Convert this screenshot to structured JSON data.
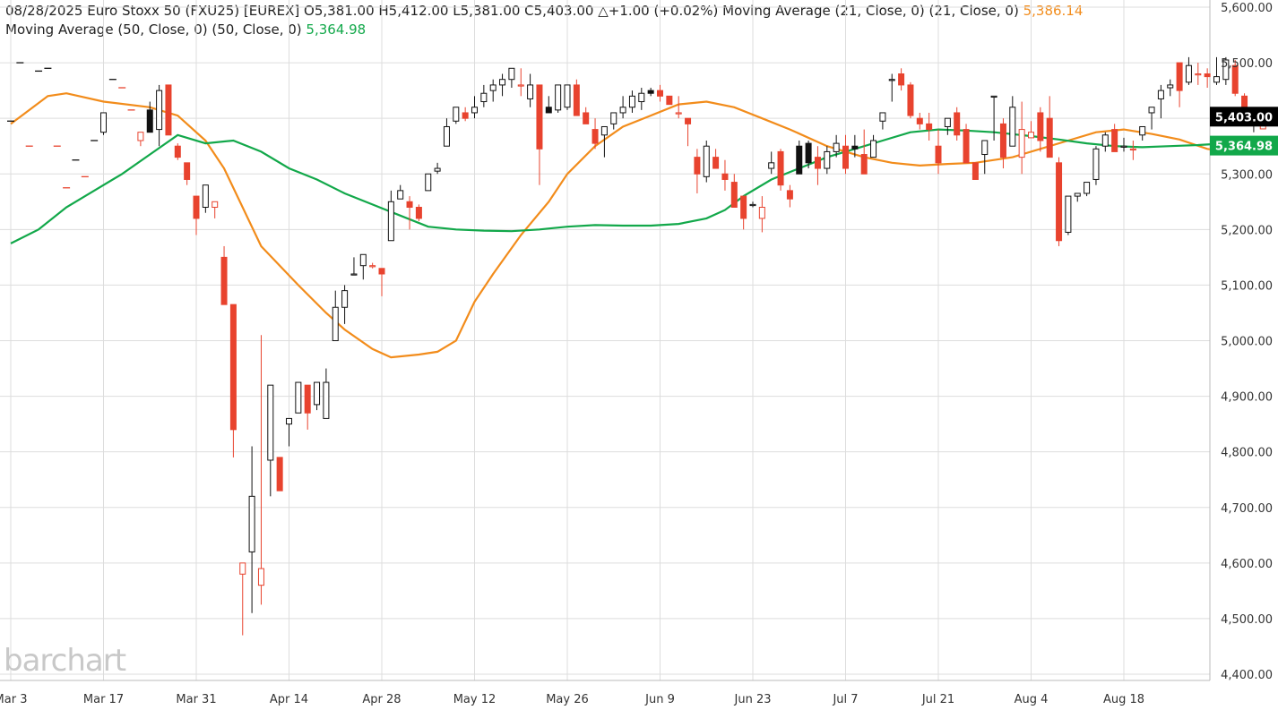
{
  "header": {
    "line1": "08/28/2025 Euro Stoxx 50 (FXU25) [EUREX] O5,381.00 H5,412.00 L5,381.00 C5,403.00 △+1.00 (+0.02%) Moving Average (21, Close, 0)  (21, Close, 0)",
    "ma21_value": "5,386.14",
    "line2": "Moving Average (50, Close, 0)  (50, Close, 0)",
    "ma50_value": "5,364.98"
  },
  "logo": "barchart",
  "colors": {
    "up": "#111111",
    "down": "#e8432e",
    "ma21": "#f28c1b",
    "ma50": "#12a84a",
    "grid": "#dddddd"
  },
  "chart_data": {
    "type": "candlestick",
    "y_axis": {
      "min": 4400,
      "max": 5600,
      "ticks": [
        "5,600.00",
        "5,500.00",
        "5,400.00",
        "5,300.00",
        "5,200.00",
        "5,100.00",
        "5,000.00",
        "4,900.00",
        "4,800.00",
        "4,700.00",
        "4,600.00",
        "4,500.00",
        "4,400.00"
      ],
      "position": "right"
    },
    "x_axis": {
      "ticks": [
        "Mar 3",
        "Mar 17",
        "Mar 31",
        "Apr 14",
        "Apr 28",
        "May 12",
        "May 26",
        "Jun 9",
        "Jun 23",
        "Jul 7",
        "Jul 21",
        "Aug 4",
        "Aug 18"
      ],
      "start_date": "Mar 3",
      "bars_per_tick": 10
    },
    "last_price": {
      "value": "5,403.00"
    },
    "ma50_label": {
      "value": "5,364.98"
    },
    "candles": [
      [
        5390,
        5395,
        5390,
        5395,
        "dash"
      ],
      [
        5500,
        5500,
        5500,
        5500,
        "dash"
      ],
      [
        5350,
        5350,
        5350,
        5350,
        "dash"
      ],
      [
        5485,
        5485,
        5485,
        5485,
        "dash"
      ],
      [
        5490,
        5490,
        5490,
        5490,
        "dash"
      ],
      [
        5350,
        5350,
        5350,
        5350,
        "dash"
      ],
      [
        5275,
        5275,
        5275,
        5275,
        "dash"
      ],
      [
        5325,
        5325,
        5325,
        5325,
        "dash"
      ],
      [
        5295,
        5295,
        5295,
        5295,
        "dash"
      ],
      [
        5360,
        5360,
        5360,
        5360,
        "dash"
      ],
      [
        5375,
        5410,
        5370,
        5410
      ],
      [
        5470,
        5470,
        5470,
        5470,
        "dash"
      ],
      [
        5455,
        5455,
        5455,
        5455,
        "dash"
      ],
      [
        5415,
        5415,
        5415,
        5415,
        "dash"
      ],
      [
        5360,
        5375,
        5350,
        5375
      ],
      [
        5415,
        5430,
        5375,
        5375
      ],
      [
        5380,
        5460,
        5350,
        5450
      ],
      [
        5460,
        5460,
        5370,
        5370
      ],
      [
        5350,
        5355,
        5325,
        5330
      ],
      [
        5320,
        5320,
        5280,
        5290
      ],
      [
        5260,
        5260,
        5190,
        5220
      ],
      [
        5240,
        5280,
        5230,
        5280
      ],
      [
        5240,
        5250,
        5220,
        5250
      ],
      [
        5150,
        5170,
        5065,
        5065
      ],
      [
        5065,
        5065,
        4790,
        4840
      ],
      [
        4580,
        4590,
        4470,
        4600
      ],
      [
        4620,
        4810,
        4510,
        4720
      ],
      [
        4560,
        5010,
        4525,
        4590
      ],
      [
        4785,
        4920,
        4720,
        4920
      ],
      [
        4790,
        4790,
        4730,
        4730
      ],
      [
        4850,
        4860,
        4810,
        4860
      ],
      [
        4870,
        4925,
        4870,
        4925
      ],
      [
        4920,
        4920,
        4840,
        4870
      ],
      [
        4885,
        4925,
        4875,
        4925
      ],
      [
        4860,
        4950,
        4860,
        4925
      ],
      [
        5000,
        5090,
        5000,
        5060
      ],
      [
        5060,
        5100,
        5030,
        5090
      ],
      [
        5120,
        5150,
        5120,
        5120
      ],
      [
        5135,
        5155,
        5110,
        5155
      ],
      [
        5135,
        5140,
        5130,
        5135
      ],
      [
        5130,
        5130,
        5080,
        5120
      ],
      [
        5180,
        5270,
        5180,
        5250
      ],
      [
        5255,
        5280,
        5255,
        5270
      ],
      [
        5250,
        5260,
        5200,
        5240
      ],
      [
        5240,
        5245,
        5215,
        5220
      ],
      [
        5270,
        5300,
        5270,
        5300
      ],
      [
        5305,
        5320,
        5300,
        5310
      ],
      [
        5350,
        5400,
        5350,
        5385
      ],
      [
        5395,
        5420,
        5390,
        5420
      ],
      [
        5410,
        5420,
        5395,
        5400
      ],
      [
        5410,
        5440,
        5400,
        5420
      ],
      [
        5430,
        5460,
        5420,
        5445
      ],
      [
        5450,
        5470,
        5430,
        5460
      ],
      [
        5460,
        5480,
        5440,
        5470
      ],
      [
        5470,
        5490,
        5455,
        5490
      ],
      [
        5460,
        5490,
        5440,
        5460
      ],
      [
        5435,
        5480,
        5420,
        5460
      ],
      [
        5460,
        5460,
        5280,
        5345
      ],
      [
        5420,
        5440,
        5410,
        5410
      ],
      [
        5415,
        5460,
        5410,
        5460
      ],
      [
        5420,
        5460,
        5415,
        5460
      ],
      [
        5460,
        5470,
        5405,
        5405
      ],
      [
        5410,
        5420,
        5390,
        5390
      ],
      [
        5380,
        5400,
        5345,
        5355
      ],
      [
        5370,
        5385,
        5330,
        5385
      ],
      [
        5390,
        5410,
        5380,
        5410
      ],
      [
        5410,
        5440,
        5400,
        5420
      ],
      [
        5420,
        5450,
        5410,
        5440
      ],
      [
        5430,
        5455,
        5415,
        5445
      ],
      [
        5450,
        5455,
        5440,
        5445
      ],
      [
        5450,
        5460,
        5430,
        5440
      ],
      [
        5440,
        5440,
        5425,
        5425
      ],
      [
        5410,
        5440,
        5400,
        5410
      ],
      [
        5400,
        5400,
        5350,
        5390
      ],
      [
        5330,
        5345,
        5265,
        5300
      ],
      [
        5295,
        5360,
        5285,
        5350
      ],
      [
        5330,
        5345,
        5310,
        5310
      ],
      [
        5300,
        5325,
        5270,
        5290
      ],
      [
        5285,
        5300,
        5250,
        5240
      ],
      [
        5260,
        5260,
        5200,
        5220
      ],
      [
        5245,
        5250,
        5240,
        5245
      ],
      [
        5220,
        5260,
        5195,
        5240
      ],
      [
        5310,
        5340,
        5300,
        5320
      ],
      [
        5340,
        5345,
        5270,
        5280
      ],
      [
        5270,
        5280,
        5240,
        5255
      ],
      [
        5350,
        5360,
        5300,
        5300
      ],
      [
        5355,
        5360,
        5310,
        5320
      ],
      [
        5330,
        5350,
        5280,
        5310
      ],
      [
        5310,
        5350,
        5300,
        5340
      ],
      [
        5340,
        5370,
        5330,
        5355
      ],
      [
        5350,
        5370,
        5300,
        5310
      ],
      [
        5350,
        5370,
        5330,
        5345
      ],
      [
        5335,
        5380,
        5300,
        5300
      ],
      [
        5330,
        5370,
        5330,
        5360
      ],
      [
        5395,
        5410,
        5380,
        5410
      ],
      [
        5470,
        5480,
        5430,
        5470
      ],
      [
        5480,
        5490,
        5450,
        5460
      ],
      [
        5460,
        5465,
        5400,
        5405
      ],
      [
        5400,
        5410,
        5380,
        5390
      ],
      [
        5390,
        5410,
        5360,
        5380
      ],
      [
        5350,
        5380,
        5300,
        5320
      ],
      [
        5385,
        5400,
        5370,
        5400
      ],
      [
        5410,
        5420,
        5360,
        5370
      ],
      [
        5380,
        5390,
        5320,
        5320
      ],
      [
        5320,
        5320,
        5290,
        5290
      ],
      [
        5335,
        5360,
        5300,
        5360
      ],
      [
        5440,
        5440,
        5360,
        5440
      ],
      [
        5390,
        5400,
        5310,
        5330
      ],
      [
        5350,
        5440,
        5350,
        5420
      ],
      [
        5330,
        5430,
        5300,
        5380
      ],
      [
        5365,
        5395,
        5365,
        5375
      ],
      [
        5410,
        5420,
        5340,
        5360
      ],
      [
        5400,
        5440,
        5330,
        5330
      ],
      [
        5320,
        5330,
        5170,
        5180
      ],
      [
        5195,
        5260,
        5190,
        5260
      ],
      [
        5260,
        5265,
        5250,
        5265
      ],
      [
        5265,
        5285,
        5260,
        5285
      ],
      [
        5290,
        5350,
        5280,
        5345
      ],
      [
        5350,
        5375,
        5340,
        5370
      ],
      [
        5380,
        5390,
        5340,
        5340
      ],
      [
        5350,
        5365,
        5340,
        5350
      ],
      [
        5345,
        5360,
        5325,
        5345
      ],
      [
        5370,
        5385,
        5360,
        5385
      ],
      [
        5410,
        5420,
        5380,
        5420
      ],
      [
        5435,
        5460,
        5400,
        5450
      ],
      [
        5455,
        5470,
        5440,
        5460
      ],
      [
        5500,
        5500,
        5420,
        5450
      ],
      [
        5465,
        5510,
        5460,
        5495
      ],
      [
        5480,
        5500,
        5460,
        5480
      ],
      [
        5480,
        5490,
        5455,
        5475
      ],
      [
        5465,
        5510,
        5460,
        5475
      ],
      [
        5470,
        5510,
        5460,
        5505
      ],
      [
        5495,
        5505,
        5440,
        5445
      ],
      [
        5440,
        5445,
        5390,
        5395
      ],
      [
        5395,
        5410,
        5375,
        5410
      ],
      [
        5381,
        5412,
        5381,
        5403
      ]
    ],
    "ma21": [
      [
        0,
        5390
      ],
      [
        4,
        5440
      ],
      [
        6,
        5445
      ],
      [
        10,
        5430
      ],
      [
        15,
        5420
      ],
      [
        18,
        5405
      ],
      [
        21,
        5360
      ],
      [
        23,
        5310
      ],
      [
        27,
        5170
      ],
      [
        31,
        5100
      ],
      [
        34,
        5050
      ],
      [
        36,
        5020
      ],
      [
        39,
        4985
      ],
      [
        41,
        4970
      ],
      [
        44,
        4975
      ],
      [
        46,
        4980
      ],
      [
        48,
        5000
      ],
      [
        50,
        5070
      ],
      [
        52,
        5120
      ],
      [
        55,
        5190
      ],
      [
        58,
        5250
      ],
      [
        60,
        5300
      ],
      [
        63,
        5350
      ],
      [
        66,
        5385
      ],
      [
        69,
        5405
      ],
      [
        72,
        5425
      ],
      [
        75,
        5430
      ],
      [
        78,
        5420
      ],
      [
        81,
        5400
      ],
      [
        84,
        5380
      ],
      [
        88,
        5350
      ],
      [
        92,
        5330
      ],
      [
        95,
        5320
      ],
      [
        98,
        5315
      ],
      [
        101,
        5318
      ],
      [
        104,
        5320
      ],
      [
        108,
        5330
      ],
      [
        111,
        5345
      ],
      [
        114,
        5360
      ],
      [
        117,
        5375
      ],
      [
        120,
        5380
      ],
      [
        123,
        5372
      ],
      [
        126,
        5362
      ],
      [
        129,
        5345
      ],
      [
        132,
        5338
      ],
      [
        135,
        5350
      ],
      [
        138,
        5362
      ],
      [
        141,
        5380
      ],
      [
        144,
        5385
      ],
      [
        146,
        5386
      ]
    ],
    "ma50": [
      [
        0,
        5175
      ],
      [
        3,
        5200
      ],
      [
        6,
        5240
      ],
      [
        9,
        5270
      ],
      [
        12,
        5300
      ],
      [
        15,
        5335
      ],
      [
        18,
        5370
      ],
      [
        21,
        5355
      ],
      [
        24,
        5360
      ],
      [
        27,
        5340
      ],
      [
        30,
        5310
      ],
      [
        33,
        5290
      ],
      [
        36,
        5265
      ],
      [
        39,
        5245
      ],
      [
        42,
        5225
      ],
      [
        45,
        5205
      ],
      [
        48,
        5200
      ],
      [
        51,
        5198
      ],
      [
        54,
        5197
      ],
      [
        57,
        5200
      ],
      [
        60,
        5205
      ],
      [
        63,
        5208
      ],
      [
        66,
        5207
      ],
      [
        69,
        5207
      ],
      [
        72,
        5210
      ],
      [
        75,
        5220
      ],
      [
        77,
        5235
      ],
      [
        79,
        5260
      ],
      [
        82,
        5290
      ],
      [
        85,
        5310
      ],
      [
        88,
        5330
      ],
      [
        91,
        5345
      ],
      [
        94,
        5360
      ],
      [
        97,
        5375
      ],
      [
        100,
        5380
      ],
      [
        103,
        5378
      ],
      [
        106,
        5375
      ],
      [
        110,
        5368
      ],
      [
        113,
        5362
      ],
      [
        116,
        5355
      ],
      [
        119,
        5350
      ],
      [
        122,
        5348
      ],
      [
        125,
        5350
      ],
      [
        128,
        5352
      ],
      [
        131,
        5355
      ],
      [
        134,
        5360
      ],
      [
        137,
        5362
      ],
      [
        140,
        5360
      ],
      [
        143,
        5362
      ],
      [
        146,
        5365
      ]
    ]
  }
}
